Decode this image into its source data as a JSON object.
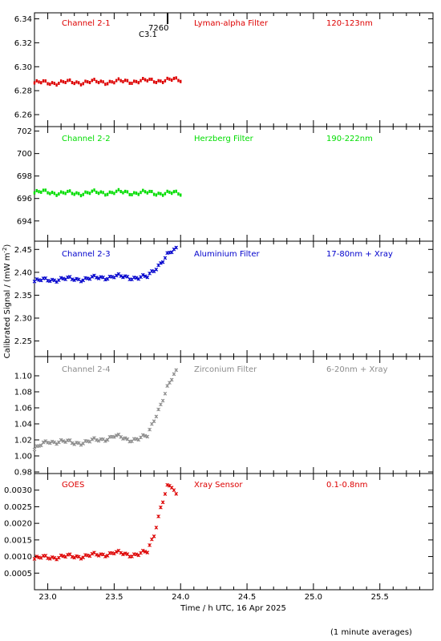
{
  "figure": {
    "ylabel": "Calibrated Signal / (mW m",
    "ylabel_sup": "-2",
    "ylabel_close": ")",
    "xlabel": "Time / h UTC, 16 Apr 2025",
    "footnote": "(1 minute averages)",
    "flare_marker": {
      "x": 23.9,
      "line1": "7260",
      "line2": "C3.1"
    }
  },
  "chart_data": [
    {
      "type": "scatter",
      "id": "p1",
      "labels": [
        "Channel 2-1",
        "Lyman-alpha Filter",
        "120-123nm"
      ],
      "color": "#dd0000",
      "marker": "dot",
      "xlim": [
        22.9,
        25.9
      ],
      "ylim": [
        6.25,
        6.345
      ],
      "yticks": [
        6.26,
        6.28,
        6.3,
        6.32,
        6.34
      ],
      "ytick_labels": [
        "6.26",
        "6.28",
        "6.30",
        "6.32",
        "6.34"
      ],
      "segments": [
        [
          22.9,
          6.2865
        ],
        [
          23.5,
          6.2875
        ],
        [
          24.0,
          6.289
        ]
      ]
    },
    {
      "type": "scatter",
      "id": "p2",
      "labels": [
        "Channel 2-2",
        "Herzberg Filter",
        "190-222nm"
      ],
      "color": "#00dd00",
      "marker": "dot",
      "xlim": [
        22.9,
        25.9
      ],
      "ylim": [
        692.2,
        702.4
      ],
      "yticks": [
        694,
        696,
        698,
        700,
        702
      ],
      "ytick_labels": [
        "694",
        "696",
        "698",
        "700",
        "702"
      ],
      "segments": [
        [
          22.9,
          696.5
        ],
        [
          23.0,
          696.6
        ],
        [
          23.1,
          696.45
        ],
        [
          23.5,
          696.55
        ],
        [
          24.0,
          696.45
        ]
      ]
    },
    {
      "type": "scatter",
      "id": "p3",
      "labels": [
        "Channel 2-3",
        "Aluminium Filter",
        "17-80nm + Xray"
      ],
      "color": "#0000cc",
      "marker": "star",
      "xlim": [
        22.9,
        25.9
      ],
      "ylim": [
        2.216,
        2.468
      ],
      "yticks": [
        2.25,
        2.3,
        2.35,
        2.4,
        2.45
      ],
      "ytick_labels": [
        "2.25",
        "2.30",
        "2.35",
        "2.40",
        "2.45"
      ],
      "segments": [
        [
          22.9,
          2.38
        ],
        [
          23.0,
          2.384
        ],
        [
          23.3,
          2.386
        ],
        [
          23.5,
          2.391
        ],
        [
          23.6,
          2.389
        ],
        [
          23.75,
          2.389
        ],
        [
          23.8,
          2.405
        ],
        [
          23.9,
          2.438
        ],
        [
          23.97,
          2.45
        ]
      ]
    },
    {
      "type": "scatter",
      "id": "p4",
      "labels": [
        "Channel 2-4",
        "Zirconium Filter",
        "6-20nm + Xray"
      ],
      "color": "#8c8c8c",
      "marker": "star",
      "xlim": [
        22.9,
        25.9
      ],
      "ylim": [
        0.978,
        1.124
      ],
      "yticks": [
        0.98,
        1.0,
        1.02,
        1.04,
        1.06,
        1.08,
        1.1
      ],
      "ytick_labels": [
        "0.98",
        "1.00",
        "1.02",
        "1.04",
        "1.06",
        "1.08",
        "1.10"
      ],
      "segments": [
        [
          22.9,
          1.008
        ],
        [
          23.0,
          1.018
        ],
        [
          23.1,
          1.018
        ],
        [
          23.2,
          1.016
        ],
        [
          23.4,
          1.02
        ],
        [
          23.5,
          1.025
        ],
        [
          23.6,
          1.02
        ],
        [
          23.75,
          1.024
        ],
        [
          23.8,
          1.045
        ],
        [
          23.85,
          1.065
        ],
        [
          23.9,
          1.085
        ],
        [
          23.95,
          1.1
        ],
        [
          23.98,
          1.108
        ]
      ]
    },
    {
      "type": "scatter",
      "id": "p5",
      "labels": [
        "GOES",
        "Xray Sensor",
        "0.1-0.8nm"
      ],
      "color": "#dd0000",
      "marker": "star",
      "xlim": [
        22.9,
        25.9
      ],
      "ylim": [
        0.0,
        0.0035
      ],
      "yticks": [
        0.0005,
        0.001,
        0.0015,
        0.002,
        0.0025,
        0.003
      ],
      "ytick_labels": [
        "0.0005",
        "0.0010",
        "0.0015",
        "0.0020",
        "0.0025",
        "0.0030"
      ],
      "xticks": [
        23.0,
        23.5,
        24.0,
        24.5,
        25.0,
        25.5
      ],
      "xtick_labels": [
        "23.0",
        "23.5",
        "24.0",
        "24.5",
        "25.0",
        "25.5"
      ],
      "segments": [
        [
          22.9,
          0.00093
        ],
        [
          23.0,
          0.00098
        ],
        [
          23.2,
          0.001
        ],
        [
          23.4,
          0.00105
        ],
        [
          23.5,
          0.00112
        ],
        [
          23.6,
          0.00105
        ],
        [
          23.75,
          0.00112
        ],
        [
          23.8,
          0.00165
        ],
        [
          23.85,
          0.0025
        ],
        [
          23.9,
          0.0031
        ],
        [
          23.93,
          0.0031
        ],
        [
          23.97,
          0.0028
        ]
      ]
    }
  ]
}
